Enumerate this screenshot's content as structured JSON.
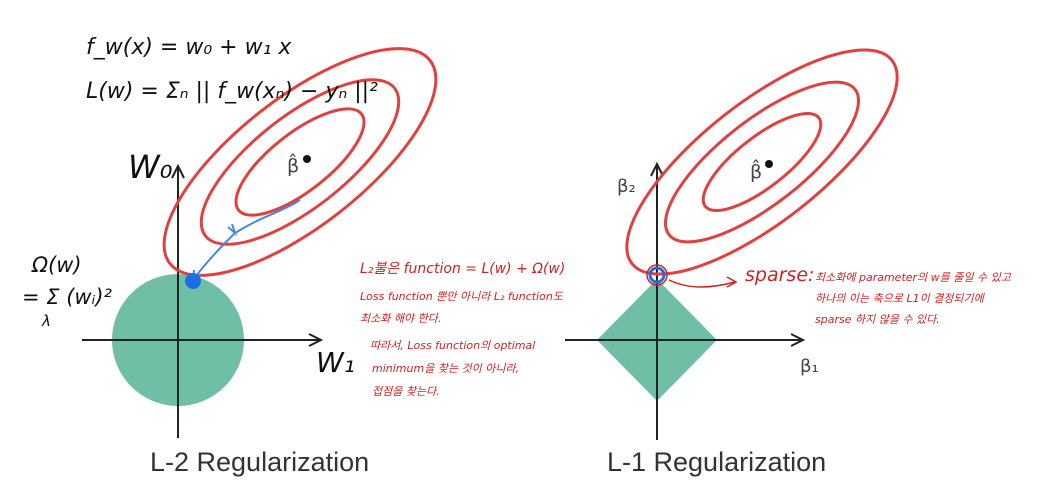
{
  "colors": {
    "contour": "#e0413f",
    "region": "#6fbfa6",
    "axis": "#222222",
    "path": "#4b86e6",
    "point": "#1a6fe6",
    "note": "#d42020"
  },
  "l2": {
    "caption": "L-2 Regularization",
    "axis_y": "W₀",
    "axis_x": "W₁",
    "beta_hat": "β̂",
    "formula_model": "f_w(x) = w₀ + w₁ x",
    "formula_loss": "L(w) = Σₙ || f_w(xₙ) − yₙ ||²",
    "omega_line1": "Ω(w)",
    "omega_line2": "= Σ (wᵢ)²",
    "omega_index": "λ",
    "notes": [
      "L₂불은 function = L(w) + Ω(w)",
      "Loss function 뿐만 아니라 L₂ function도",
      "최소화 해야 한다.",
      "따라서, Loss function의 optimal",
      "minimum을 찾는 것이 아니라,",
      "접점을 찾는다."
    ]
  },
  "l1": {
    "caption": "L-1 Regularization",
    "axis_y": "β₂",
    "axis_x": "β₁",
    "beta_hat": "β̂",
    "sparse_label": "sparse:",
    "sparse_notes": [
      "최소화에 parameter의 w를 줄일 수 있고",
      "하나의 이는 축으로 L1이 결정되기에",
      "sparse 하지 않을 수 있다."
    ]
  }
}
